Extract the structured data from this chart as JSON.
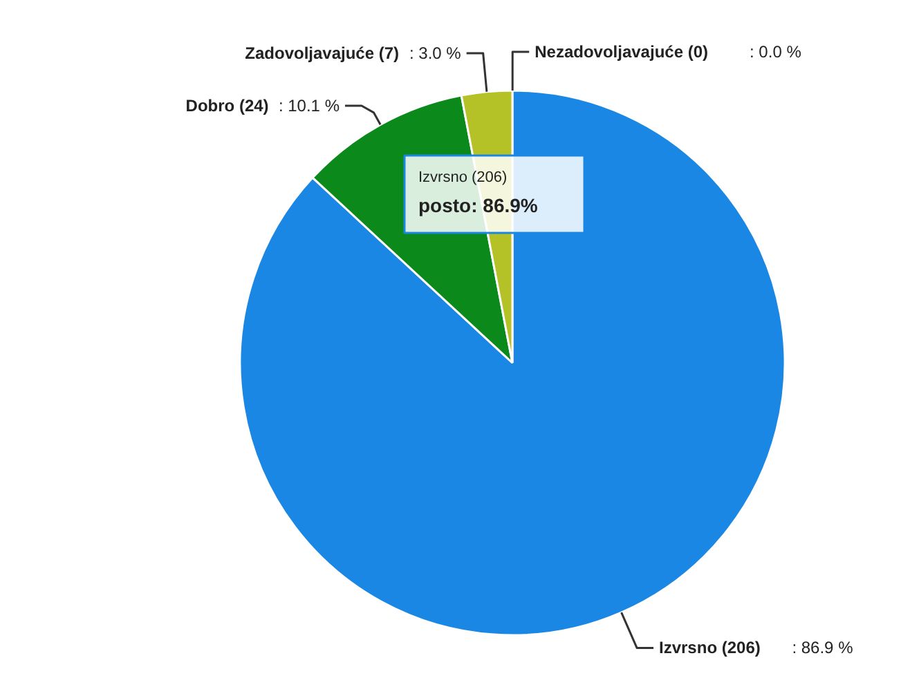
{
  "chart_data": {
    "type": "pie",
    "categories": [
      "Izvrsno (206)",
      "Dobro (24)",
      "Zadovoljavajuće (7)",
      "Nezadovoljavajuće (0)"
    ],
    "values": [
      86.9,
      10.1,
      3.0,
      0.0
    ],
    "colors": [
      "#1a87e5",
      "#0b8a1b",
      "#b5c227",
      "#7f5fb0"
    ],
    "value_labels": [
      ": 86.9 %",
      ": 10.1 %",
      ": 3.0 %",
      ": 0.0 %"
    ],
    "annotations": [
      "Izvrsno (206)",
      "posto: 86.9%"
    ]
  }
}
